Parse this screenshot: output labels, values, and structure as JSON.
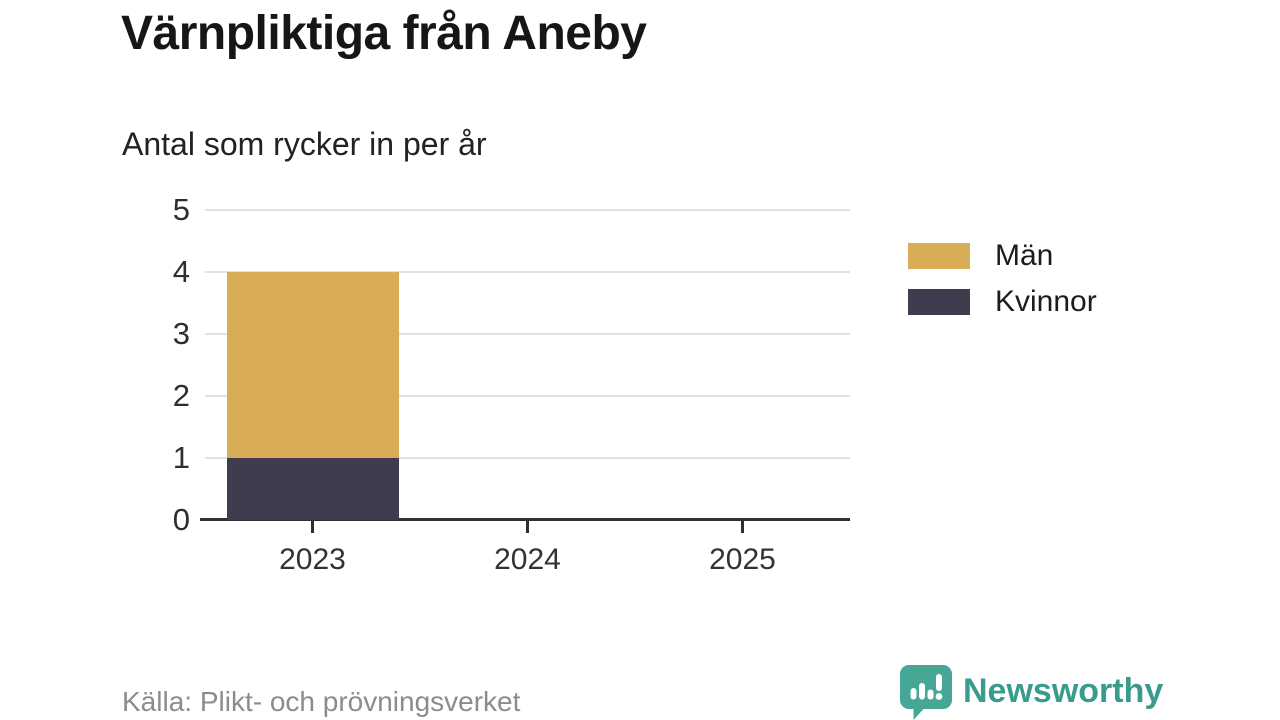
{
  "title": "Värnpliktiga från Aneby",
  "subtitle": "Antal som rycker in per år",
  "source": "Källa: Plikt- och prövningsverket",
  "brand": {
    "name": "Newsworthy",
    "icon": "bar-chart-speech-bubble",
    "color": "#399b8e"
  },
  "colors": {
    "men": "#d9ac56",
    "women": "#3f3c4f",
    "gridline": "#e1e1e1",
    "axis": "#2f2f2f",
    "title_text": "#161616",
    "source_text": "#8c8c8c"
  },
  "legend": [
    {
      "label": "Män",
      "color": "#d9ac56"
    },
    {
      "label": "Kvinnor",
      "color": "#3f3c4f"
    }
  ],
  "chart_data": {
    "type": "bar",
    "stacked": true,
    "title": "Värnpliktiga från Aneby",
    "subtitle": "Antal som rycker in per år",
    "categories": [
      "2023",
      "2024",
      "2025"
    ],
    "series": [
      {
        "name": "Män",
        "color": "#d9ac56",
        "values": [
          3,
          null,
          null
        ]
      },
      {
        "name": "Kvinnor",
        "color": "#3f3c4f",
        "values": [
          1,
          null,
          null
        ]
      }
    ],
    "stack_totals": [
      4,
      null,
      null
    ],
    "xlabel": "",
    "ylabel": "",
    "ylim": [
      0,
      5
    ],
    "yticks": [
      0,
      1,
      2,
      3,
      4,
      5
    ],
    "grid": true,
    "legend_position": "right",
    "source": "Källa: Plikt- och prövningsverket"
  }
}
